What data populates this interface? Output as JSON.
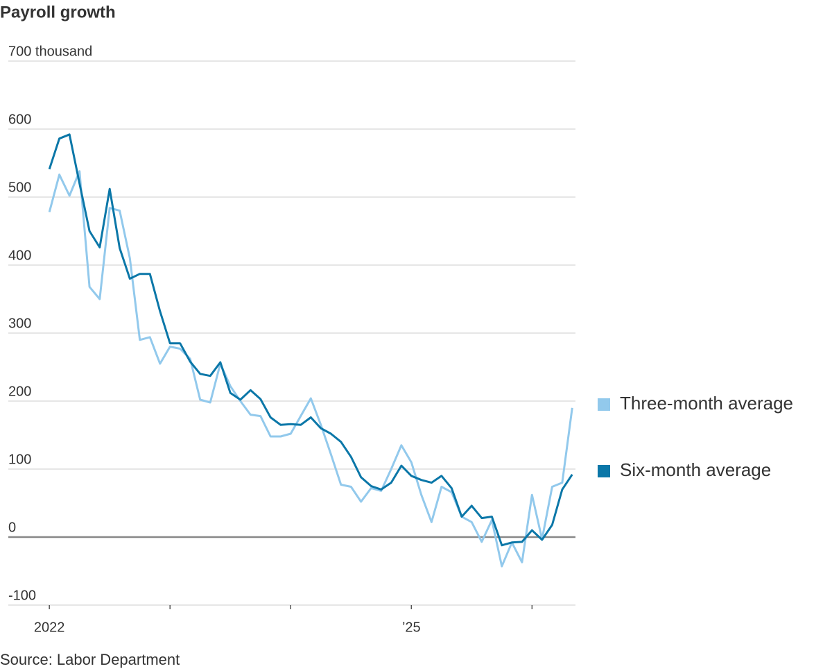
{
  "chart_data": {
    "type": "line",
    "title": "Payroll growth",
    "source": "Source: Labor Department",
    "x": [
      2022,
      2022.083,
      2022.167,
      2022.25,
      2022.333,
      2022.417,
      2022.5,
      2022.583,
      2022.667,
      2022.75,
      2022.833,
      2022.917,
      2023,
      2023.083,
      2023.167,
      2023.25,
      2023.333,
      2023.417,
      2023.5,
      2023.583,
      2023.667,
      2023.75,
      2023.833,
      2023.917,
      2024,
      2024.083,
      2024.167,
      2024.25,
      2024.333,
      2024.417,
      2024.5,
      2024.583,
      2024.667,
      2024.75,
      2024.833,
      2024.917,
      2025,
      2025.083,
      2025.167,
      2025.25,
      2025.333,
      2025.417,
      2025.5,
      2025.583,
      2025.667,
      2025.75,
      2025.833,
      2025.917,
      2026,
      2026.083,
      2026.167,
      2026.25,
      2026.333
    ],
    "series": [
      {
        "name": "Three-month average",
        "color": "#92c9ec",
        "values": [
          478,
          533,
          502,
          538,
          368,
          350,
          484,
          480,
          410,
          290,
          294,
          255,
          280,
          277,
          262,
          202,
          198,
          255,
          222,
          200,
          180,
          178,
          148,
          148,
          152,
          178,
          204,
          165,
          122,
          77,
          74,
          52,
          72,
          68,
          100,
          135,
          110,
          62,
          22,
          74,
          66,
          30,
          22,
          -7,
          25,
          -43,
          -8,
          -37,
          62,
          -3,
          74,
          80,
          190
        ]
      },
      {
        "name": "Six-month average",
        "color": "#0b77a8",
        "values": [
          541,
          586,
          592,
          520,
          450,
          426,
          512,
          425,
          380,
          387,
          387,
          332,
          285,
          285,
          258,
          240,
          237,
          257,
          212,
          202,
          216,
          203,
          176,
          165,
          166,
          165,
          176,
          160,
          152,
          140,
          118,
          88,
          75,
          70,
          80,
          105,
          90,
          84,
          80,
          90,
          72,
          30,
          46,
          28,
          30,
          -12,
          -8,
          -7,
          10,
          -4,
          18,
          70,
          92
        ]
      }
    ],
    "xlim": [
      2021.66,
      2026.36
    ],
    "xticks": [
      2022,
      {
        "value": 2025,
        "label": "’25"
      }
    ],
    "xminor_ticks": [
      2023,
      2024,
      2026
    ],
    "ylim": [
      -100,
      700
    ],
    "yticks": [
      -100,
      0,
      100,
      200,
      300,
      400,
      500,
      600,
      {
        "value": 700,
        "label": "700 thousand"
      }
    ],
    "grid": true
  }
}
